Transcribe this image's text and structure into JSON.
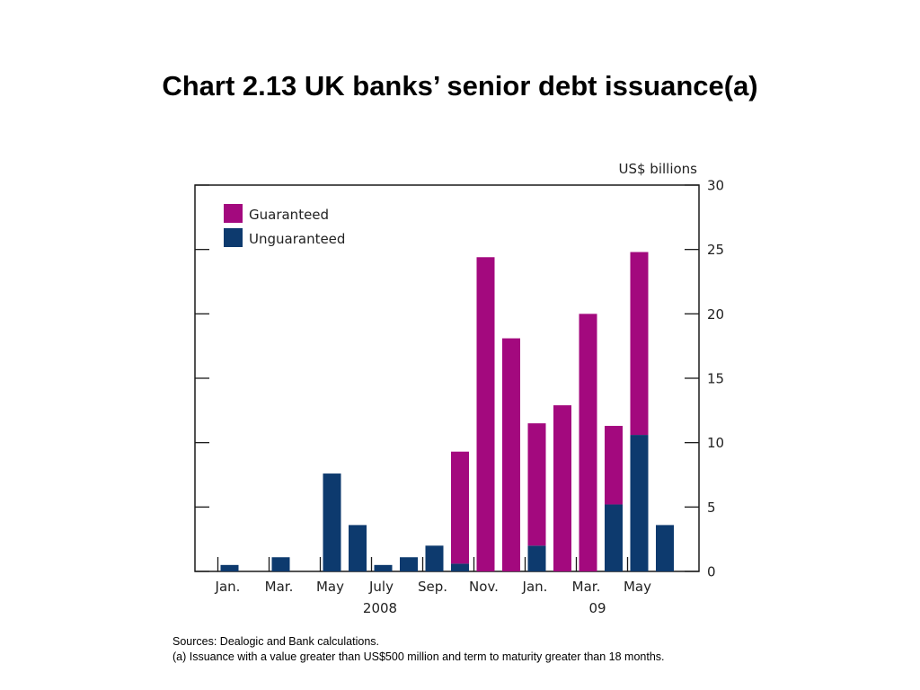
{
  "title": "Chart 2.13  UK banks’ senior debt issuance(a)",
  "notes": {
    "sources": "Sources:  Dealogic and Bank calculations.",
    "footnote": "(a) Issuance with a value greater than US$500 million and term to maturity greater than 18 months."
  },
  "colors": {
    "guaranteed": "#a3097e",
    "unguaranteed": "#0d3a6e"
  },
  "chart_data": {
    "type": "bar",
    "stacked": true,
    "ylabel": "US$ billions",
    "ylim": [
      0,
      30
    ],
    "yticks": [
      0,
      5,
      10,
      15,
      20,
      25,
      30
    ],
    "grid": false,
    "legend_position": "top-left",
    "x_tick_labels": [
      "Jan.",
      "Mar.",
      "May",
      "July",
      "Sep.",
      "Nov.",
      "Jan.",
      "Mar.",
      "May"
    ],
    "year_labels": [
      "2008",
      "09"
    ],
    "categories": [
      "Jan 2008",
      "Feb 2008",
      "Mar 2008",
      "Apr 2008",
      "May 2008",
      "Jun 2008",
      "Jul 2008",
      "Aug 2008",
      "Sep 2008",
      "Oct 2008",
      "Nov 2008",
      "Dec 2008",
      "Jan 2009",
      "Feb 2009",
      "Mar 2009",
      "Apr 2009",
      "May 2009",
      "Jun 2009"
    ],
    "series": [
      {
        "name": "Unguaranteed",
        "values": [
          0.5,
          0,
          1.1,
          0,
          7.6,
          3.6,
          0.5,
          1.1,
          2.0,
          0.6,
          0,
          0,
          2.0,
          0,
          0,
          5.2,
          10.6,
          3.6
        ]
      },
      {
        "name": "Guaranteed",
        "values": [
          0,
          0,
          0,
          0,
          0,
          0,
          0,
          0,
          0,
          8.7,
          24.4,
          18.1,
          9.5,
          12.9,
          20.0,
          6.1,
          14.2,
          0
        ]
      }
    ]
  }
}
